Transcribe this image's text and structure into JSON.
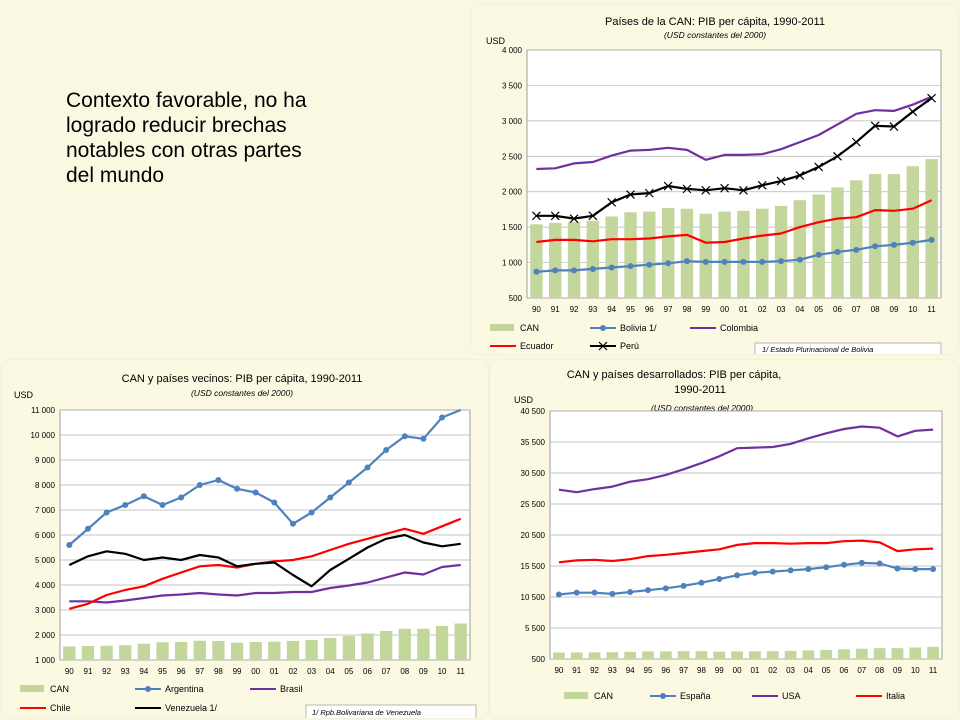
{
  "intro": {
    "text": "Contexto favorable, no ha logrado reducir brechas notables con otras partes del mundo"
  },
  "years": [
    "90",
    "91",
    "92",
    "93",
    "94",
    "95",
    "96",
    "97",
    "98",
    "99",
    "00",
    "01",
    "02",
    "03",
    "04",
    "05",
    "06",
    "07",
    "08",
    "09",
    "10",
    "11"
  ],
  "colors": {
    "can": "#c3d69b",
    "blue": "#4f81bd",
    "purple": "#7030a0",
    "red": "#ff0000",
    "black": "#000000"
  },
  "chart_data": [
    {
      "id": "chart1",
      "type": "bar+line",
      "title": "Países de la CAN: PIB per cápita, 1990-2011",
      "subtitle": "(USD constantes del 2000)",
      "ylabel": "USD",
      "ylim": [
        500,
        4000
      ],
      "yticks": [
        500,
        1000,
        1500,
        2000,
        2500,
        3000,
        3500,
        4000
      ],
      "ytick_labels": [
        "500",
        "1 000",
        "1 500",
        "2 000",
        "2 500",
        "3 000",
        "3 500",
        "4 000"
      ],
      "footnote": "1/ Estado Plurinacional de Bolivia",
      "series": [
        {
          "name": "CAN",
          "kind": "bar",
          "color": "#c3d69b",
          "values": [
            1540,
            1560,
            1570,
            1590,
            1650,
            1710,
            1720,
            1770,
            1760,
            1690,
            1720,
            1730,
            1760,
            1800,
            1880,
            1960,
            2060,
            2160,
            2250,
            2250,
            2360,
            2460
          ]
        },
        {
          "name": "Bolivia 1/",
          "kind": "line",
          "marker": "circle",
          "color": "#4f81bd",
          "values": [
            870,
            890,
            890,
            910,
            930,
            950,
            970,
            990,
            1020,
            1010,
            1010,
            1010,
            1010,
            1020,
            1040,
            1110,
            1150,
            1180,
            1230,
            1250,
            1280,
            1320
          ]
        },
        {
          "name": "Colombia",
          "kind": "line",
          "marker": "none",
          "color": "#7030a0",
          "values": [
            2320,
            2330,
            2400,
            2420,
            2510,
            2580,
            2590,
            2620,
            2590,
            2450,
            2520,
            2520,
            2530,
            2600,
            2700,
            2800,
            2950,
            3100,
            3150,
            3140,
            3230,
            3340
          ]
        },
        {
          "name": "Ecuador",
          "kind": "line",
          "marker": "none",
          "color": "#ff0000",
          "values": [
            1290,
            1320,
            1320,
            1300,
            1330,
            1330,
            1340,
            1370,
            1390,
            1280,
            1290,
            1340,
            1380,
            1410,
            1500,
            1570,
            1620,
            1640,
            1740,
            1730,
            1760,
            1880
          ]
        },
        {
          "name": "Perú",
          "kind": "line",
          "marker": "x",
          "color": "#000000",
          "values": [
            1660,
            1660,
            1620,
            1660,
            1850,
            1960,
            1980,
            2080,
            2040,
            2020,
            2050,
            2020,
            2090,
            2150,
            2230,
            2350,
            2500,
            2700,
            2930,
            2920,
            3130,
            3320
          ]
        }
      ]
    },
    {
      "id": "chart2",
      "type": "bar+line",
      "title": "CAN y países vecinos: PIB per cápita, 1990-2011",
      "subtitle": "(USD constantes del 2000)",
      "ylabel": "USD",
      "ylim": [
        1000,
        11000
      ],
      "yticks": [
        1000,
        2000,
        3000,
        4000,
        5000,
        6000,
        7000,
        8000,
        9000,
        10000,
        11000
      ],
      "ytick_labels": [
        "1 000",
        "2 000",
        "3 000",
        "4 000",
        "5 000",
        "6 000",
        "7 000",
        "8 000",
        "9 000",
        "10 000",
        "11 000"
      ],
      "footnote": "1/ Rpb.Bolivariana de Venezuela",
      "series": [
        {
          "name": "CAN",
          "kind": "bar",
          "color": "#c3d69b",
          "values": [
            1540,
            1560,
            1570,
            1590,
            1650,
            1710,
            1720,
            1770,
            1760,
            1690,
            1720,
            1730,
            1760,
            1800,
            1880,
            1960,
            2060,
            2160,
            2250,
            2250,
            2360,
            2460
          ]
        },
        {
          "name": "Argentina",
          "kind": "line",
          "marker": "circle",
          "color": "#4f81bd",
          "values": [
            5600,
            6250,
            6900,
            7200,
            7550,
            7200,
            7500,
            8000,
            8200,
            7850,
            7700,
            7300,
            6450,
            6900,
            7500,
            8100,
            8700,
            9400,
            9950,
            9850,
            10700,
            11400
          ]
        },
        {
          "name": "Brasil",
          "kind": "line",
          "marker": "none",
          "color": "#7030a0",
          "values": [
            3350,
            3350,
            3300,
            3380,
            3480,
            3580,
            3620,
            3680,
            3620,
            3580,
            3680,
            3680,
            3720,
            3720,
            3880,
            3980,
            4100,
            4300,
            4500,
            4420,
            4720,
            4800
          ]
        },
        {
          "name": "Chile",
          "kind": "line",
          "marker": "none",
          "color": "#ff0000",
          "values": [
            3050,
            3250,
            3600,
            3800,
            3950,
            4250,
            4500,
            4750,
            4800,
            4700,
            4850,
            4950,
            5000,
            5150,
            5400,
            5650,
            5850,
            6050,
            6250,
            6050,
            6350,
            6650
          ]
        },
        {
          "name": "Venezuela 1/",
          "kind": "line",
          "marker": "none",
          "color": "#000000",
          "values": [
            4800,
            5150,
            5350,
            5250,
            5000,
            5100,
            5000,
            5200,
            5100,
            4750,
            4850,
            4900,
            4400,
            3950,
            4600,
            5050,
            5500,
            5850,
            6000,
            5700,
            5550,
            5650
          ]
        }
      ]
    },
    {
      "id": "chart3",
      "type": "bar+line",
      "title": "CAN y países desarrollados: PIB per cápita, 1990-2011",
      "subtitle": "(USD constantes del 2000)",
      "ylabel": "USD",
      "ylim": [
        500,
        40500
      ],
      "yticks": [
        500,
        5500,
        10500,
        15500,
        20500,
        25500,
        30500,
        35500,
        40500
      ],
      "ytick_labels": [
        "500",
        "5 500",
        "10 500",
        "15 500",
        "20 500",
        "25 500",
        "30 500",
        "35 500",
        "40 500"
      ],
      "footnote": "",
      "series": [
        {
          "name": "CAN",
          "kind": "bar",
          "color": "#c3d69b",
          "values": [
            1540,
            1560,
            1570,
            1590,
            1650,
            1710,
            1720,
            1770,
            1760,
            1690,
            1720,
            1730,
            1760,
            1800,
            1880,
            1960,
            2060,
            2160,
            2250,
            2250,
            2360,
            2460
          ]
        },
        {
          "name": "España",
          "kind": "line",
          "marker": "circle",
          "color": "#4f81bd",
          "values": [
            10900,
            11200,
            11200,
            11000,
            11300,
            11600,
            11900,
            12300,
            12800,
            13400,
            14000,
            14400,
            14600,
            14800,
            15000,
            15300,
            15700,
            16000,
            15900,
            15100,
            15000,
            15000
          ]
        },
        {
          "name": "USA",
          "kind": "line",
          "marker": "none",
          "color": "#7030a0",
          "values": [
            27800,
            27400,
            27900,
            28300,
            29100,
            29500,
            30200,
            31100,
            32100,
            33200,
            34500,
            34600,
            34700,
            35200,
            36100,
            36900,
            37600,
            38000,
            37800,
            36400,
            37300,
            37500
          ]
        },
        {
          "name": "Italia",
          "kind": "line",
          "marker": "none",
          "color": "#ff0000",
          "values": [
            16100,
            16400,
            16500,
            16300,
            16600,
            17100,
            17300,
            17600,
            17900,
            18200,
            18900,
            19200,
            19200,
            19100,
            19200,
            19200,
            19500,
            19600,
            19300,
            17900,
            18200,
            18300
          ]
        }
      ]
    }
  ]
}
